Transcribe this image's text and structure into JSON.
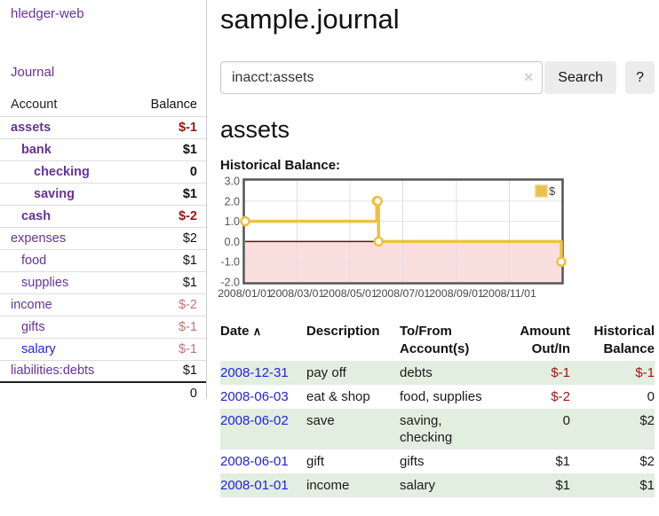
{
  "app": {
    "brand": "hledger-web"
  },
  "colors": {
    "link_purple": "#663399",
    "link_blue": "#2222dd",
    "negative_strong": "#9d1414",
    "negative_soft": "#c17575",
    "row_stripe_green": "#e2eedf",
    "series_gold": "#edc240",
    "chart_negative_fill": "#fbdfdf",
    "chart_zero_line": "#8b0000",
    "button_gray": "#ececec"
  },
  "sidebar": {
    "journal_link": "Journal",
    "accounts_table": {
      "col_account": "Account",
      "col_balance": "Balance",
      "rows": [
        {
          "name": "assets",
          "balance": "$-1"
        },
        {
          "name": "bank",
          "balance": "$1"
        },
        {
          "name": "checking",
          "balance": "0"
        },
        {
          "name": "saving",
          "balance": "$1"
        },
        {
          "name": "cash",
          "balance": "$-2"
        },
        {
          "name": "expenses",
          "balance": "$2"
        },
        {
          "name": "food",
          "balance": "$1"
        },
        {
          "name": "supplies",
          "balance": "$1"
        },
        {
          "name": "income",
          "balance": "$-2"
        },
        {
          "name": "gifts",
          "balance": "$-1"
        },
        {
          "name": "salary",
          "balance": "$-1"
        },
        {
          "name": "liabilities:debts",
          "balance": "$1"
        }
      ],
      "total": "0"
    }
  },
  "main": {
    "title": "sample.journal",
    "search": {
      "value": "inacct:assets",
      "clear_icon": "✕",
      "search_button": "Search",
      "help_button": "?"
    },
    "account_heading": "assets",
    "chart_heading": "Historical Balance:",
    "register": {
      "headers": {
        "date": "Date",
        "sort_icon": "∧",
        "description": "Description",
        "account": "To/From Account(s)",
        "amount": "Amount Out/In",
        "balance": "Historical Balance"
      },
      "rows": [
        {
          "date": "2008-12-31",
          "description": "pay off",
          "accounts": "debts",
          "amount": "$-1",
          "amount_neg": true,
          "balance": "$-1",
          "balance_neg": true
        },
        {
          "date": "2008-06-03",
          "description": "eat & shop",
          "accounts": "food, supplies",
          "amount": "$-2",
          "amount_neg": true,
          "balance": "0",
          "balance_neg": false
        },
        {
          "date": "2008-06-02",
          "description": "save",
          "accounts": "saving, checking",
          "amount": "0",
          "amount_neg": false,
          "balance": "$2",
          "balance_neg": false
        },
        {
          "date": "2008-06-01",
          "description": "gift",
          "accounts": "gifts",
          "amount": "$1",
          "amount_neg": false,
          "balance": "$2",
          "balance_neg": false
        },
        {
          "date": "2008-01-01",
          "description": "income",
          "accounts": "salary",
          "amount": "$1",
          "amount_neg": false,
          "balance": "$1",
          "balance_neg": false
        }
      ]
    }
  },
  "chart_data": {
    "type": "line",
    "step": true,
    "title": "Historical Balance:",
    "legend": {
      "position": "top-right"
    },
    "series": [
      {
        "name": "$",
        "color": "#edc240",
        "points": [
          [
            "2008-01-01",
            1
          ],
          [
            "2008-06-01",
            2
          ],
          [
            "2008-06-02",
            2
          ],
          [
            "2008-06-03",
            0
          ],
          [
            "2008-12-31",
            -1
          ]
        ]
      }
    ],
    "x_range": [
      "2008-01-01",
      "2008-12-31"
    ],
    "x_ticks": [
      "2008/01/01",
      "2008/03/01",
      "2008/05/01",
      "2008/07/01",
      "2008/09/01",
      "2008/11/01"
    ],
    "y_ticks": [
      "3.0",
      "2.0",
      "1.0",
      "0.0",
      "-1.0",
      "-2.0"
    ],
    "ylim": [
      -2,
      3
    ],
    "grid": true,
    "negative_region_color": "#fbdfdf",
    "zero_line_color": "#8b0000"
  }
}
